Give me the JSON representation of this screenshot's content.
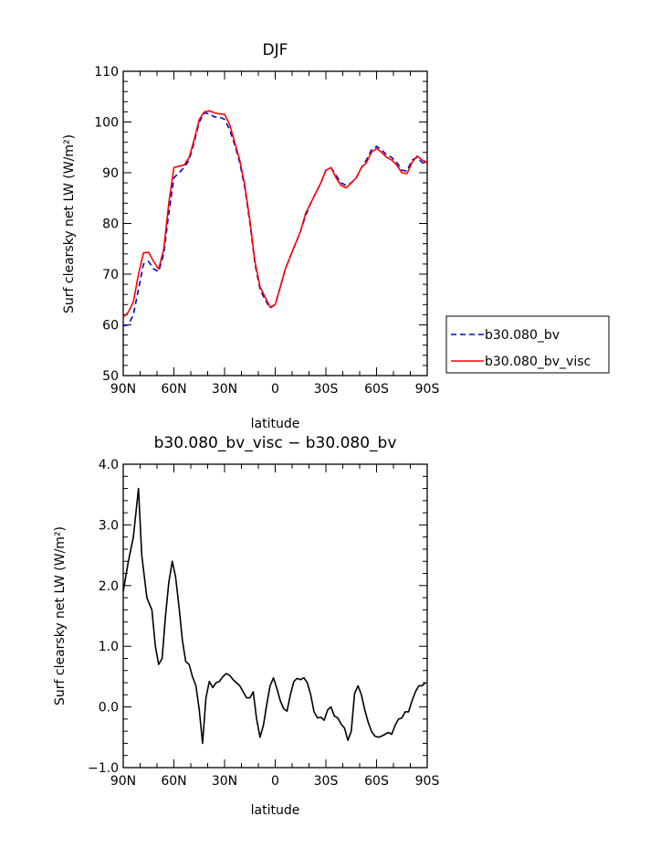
{
  "chart_data": [
    {
      "type": "line",
      "title": "DJF",
      "xlabel": "latitude",
      "ylabel": "Surf clearsky net LW (W/m²)",
      "xlim": [
        90,
        -90
      ],
      "ylim": [
        50,
        110
      ],
      "xticks": [
        90,
        60,
        30,
        0,
        -30,
        -60,
        -90
      ],
      "xtick_labels": [
        "90N",
        "60N",
        "30N",
        "0",
        "30S",
        "60S",
        "90S"
      ],
      "yticks": [
        50,
        60,
        70,
        80,
        90,
        100,
        110
      ],
      "ytick_labels": [
        "50",
        "60",
        "70",
        "80",
        "90",
        "100",
        "110"
      ],
      "legend_position": "right",
      "grid": false,
      "series": [
        {
          "name": "b30.080_bv",
          "color": "#0000cc",
          "dash": "dashed",
          "x": [
            90,
            87,
            84,
            81,
            78,
            75,
            72,
            69,
            66,
            63,
            60,
            57,
            54,
            51,
            48,
            45,
            42,
            39,
            36,
            33,
            30,
            27,
            24,
            21,
            18,
            15,
            12,
            9,
            6,
            3,
            0,
            -3,
            -6,
            -9,
            -12,
            -15,
            -18,
            -21,
            -24,
            -27,
            -30,
            -33,
            -36,
            -39,
            -42,
            -45,
            -48,
            -51,
            -54,
            -57,
            -60,
            -63,
            -66,
            -69,
            -72,
            -75,
            -78,
            -81,
            -84,
            -87,
            -90
          ],
          "y": [
            59.8,
            60.0,
            62.0,
            67.0,
            72.0,
            72.5,
            71.0,
            70.5,
            74.0,
            82.0,
            89.0,
            90.0,
            91.0,
            92.5,
            96.0,
            100.0,
            101.8,
            101.6,
            101.0,
            101.0,
            100.5,
            98.5,
            95.5,
            92.0,
            87.0,
            80.0,
            72.0,
            67.0,
            65.0,
            63.3,
            64.0,
            67.5,
            71.0,
            73.5,
            76.0,
            78.5,
            81.5,
            84.0,
            86.0,
            88.0,
            90.5,
            91.0,
            89.5,
            88.0,
            87.5,
            88.0,
            89.0,
            91.0,
            92.5,
            94.5,
            95.2,
            94.5,
            93.5,
            93.0,
            92.0,
            90.5,
            90.3,
            92.5,
            93.0,
            92.0,
            91.7
          ]
        },
        {
          "name": "b30.080_bv_visc",
          "color": "#ff0000",
          "dash": "solid",
          "x": [
            90,
            87,
            84,
            81,
            78,
            75,
            72,
            69,
            66,
            63,
            60,
            57,
            54,
            51,
            48,
            45,
            42,
            39,
            36,
            33,
            30,
            27,
            24,
            21,
            18,
            15,
            12,
            9,
            6,
            3,
            0,
            -3,
            -6,
            -9,
            -12,
            -15,
            -18,
            -21,
            -24,
            -27,
            -30,
            -33,
            -36,
            -39,
            -42,
            -45,
            -48,
            -51,
            -54,
            -57,
            -60,
            -63,
            -66,
            -69,
            -72,
            -75,
            -78,
            -81,
            -84,
            -87,
            -90
          ],
          "y": [
            61.5,
            62.5,
            64.5,
            70.0,
            74.2,
            74.3,
            72.5,
            71.0,
            75.0,
            84.0,
            91.0,
            91.3,
            91.5,
            93.0,
            96.5,
            100.5,
            102.0,
            102.2,
            101.8,
            101.6,
            101.5,
            99.5,
            96.0,
            92.5,
            87.5,
            80.5,
            72.5,
            67.5,
            65.5,
            63.5,
            64.0,
            67.5,
            71.0,
            73.5,
            76.0,
            78.5,
            82.0,
            84.0,
            86.0,
            88.0,
            90.5,
            91.0,
            89.0,
            87.5,
            87.0,
            88.0,
            89.0,
            91.0,
            92.0,
            94.0,
            94.8,
            94.0,
            93.0,
            92.5,
            91.5,
            90.0,
            89.8,
            92.0,
            93.3,
            92.5,
            92.0
          ]
        }
      ]
    },
    {
      "type": "line",
      "title": "b30.080_bv_visc − b30.080_bv",
      "xlabel": "latitude",
      "ylabel": "Surf clearsky net LW (W/m²)",
      "xlim": [
        90,
        -90
      ],
      "ylim": [
        -1.0,
        4.0
      ],
      "xticks": [
        90,
        60,
        30,
        0,
        -30,
        -60,
        -90
      ],
      "xtick_labels": [
        "90N",
        "60N",
        "30N",
        "0",
        "30S",
        "60S",
        "90S"
      ],
      "yticks": [
        -1.0,
        0.0,
        1.0,
        2.0,
        3.0,
        4.0
      ],
      "ytick_labels": [
        "−1.0",
        "0.0",
        "1.0",
        "2.0",
        "3.0",
        "4.0"
      ],
      "grid": false,
      "series": [
        {
          "color": "#000000",
          "dash": "solid",
          "x": [
            90,
            87,
            84,
            81,
            79,
            76,
            73,
            71,
            69,
            67,
            65,
            63,
            61,
            59,
            57,
            55,
            53,
            51,
            49,
            47,
            45,
            43,
            41,
            39,
            37,
            35,
            33,
            31,
            29,
            27,
            25,
            23,
            21,
            19,
            17,
            15,
            13,
            11,
            9,
            7,
            5,
            3,
            1,
            -1,
            -3,
            -5,
            -7,
            -9,
            -11,
            -13,
            -15,
            -17,
            -19,
            -21,
            -23,
            -25,
            -27,
            -29,
            -31,
            -33,
            -35,
            -37,
            -39,
            -41,
            -43,
            -45,
            -47,
            -49,
            -51,
            -53,
            -55,
            -57,
            -59,
            -61,
            -63,
            -65,
            -67,
            -69,
            -71,
            -73,
            -75,
            -77,
            -79,
            -81,
            -83,
            -85,
            -87,
            -89
          ],
          "y": [
            1.9,
            2.4,
            2.8,
            3.6,
            2.5,
            1.8,
            1.6,
            1.0,
            0.7,
            0.8,
            1.5,
            2.05,
            2.4,
            2.15,
            1.65,
            1.1,
            0.75,
            0.7,
            0.5,
            0.35,
            -0.05,
            -0.6,
            0.15,
            0.42,
            0.32,
            0.4,
            0.42,
            0.5,
            0.55,
            0.52,
            0.45,
            0.4,
            0.35,
            0.25,
            0.15,
            0.15,
            0.25,
            -0.2,
            -0.5,
            -0.3,
            0.05,
            0.35,
            0.48,
            0.3,
            0.1,
            -0.03,
            -0.07,
            0.2,
            0.42,
            0.47,
            0.45,
            0.48,
            0.4,
            0.2,
            -0.08,
            -0.18,
            -0.17,
            -0.22,
            -0.05,
            0.0,
            -0.15,
            -0.18,
            -0.28,
            -0.35,
            -0.55,
            -0.4,
            0.22,
            0.35,
            0.2,
            -0.05,
            -0.25,
            -0.4,
            -0.48,
            -0.5,
            -0.48,
            -0.45,
            -0.42,
            -0.45,
            -0.3,
            -0.2,
            -0.18,
            -0.08,
            -0.08,
            0.1,
            0.25,
            0.35,
            0.35,
            0.4
          ]
        }
      ]
    }
  ]
}
